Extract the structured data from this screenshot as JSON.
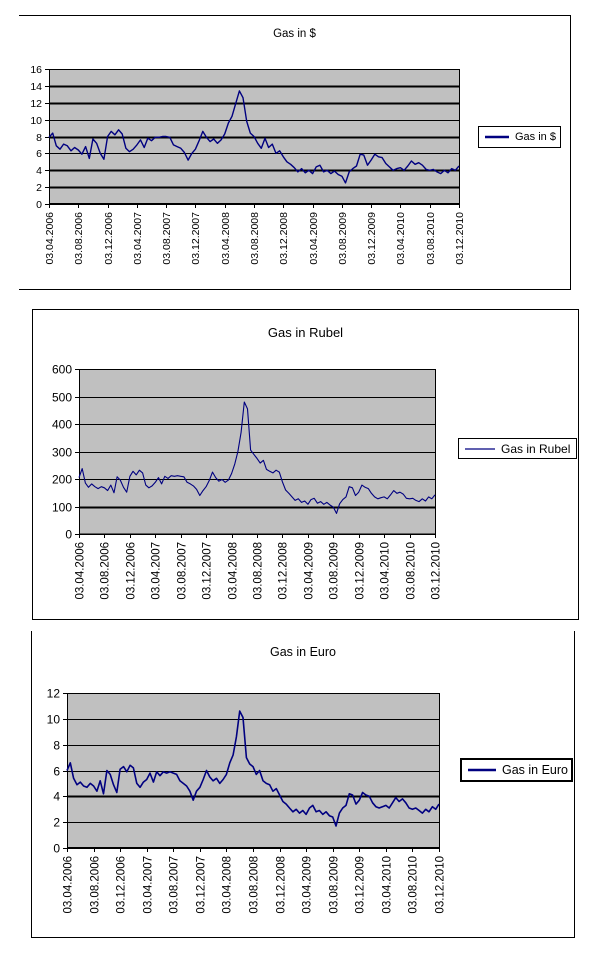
{
  "page": {
    "background": "#ffffff"
  },
  "chart_data": [
    {
      "type": "line",
      "title": "Gas in $",
      "legend_label": "Gas in $",
      "legend_position": "right",
      "grid": true,
      "line_color": "#000080",
      "plot_bg": "#c0c0c0",
      "grid_color": "#000000",
      "ylim": [
        0,
        16
      ],
      "y_ticks": [
        0,
        2,
        4,
        6,
        8,
        10,
        12,
        14,
        16
      ],
      "thick_gridlines": [
        2,
        4,
        8,
        12,
        14
      ],
      "x_labels": [
        "03.04.2006",
        "03.08.2006",
        "03.12.2006",
        "03.04.2007",
        "03.08.2007",
        "03.12.2007",
        "03.04.2008",
        "03.08.2008",
        "03.12.2008",
        "03.04.2009",
        "03.08.2009",
        "03.12.2009",
        "03.04.2010",
        "03.08.2010",
        "03.12.2010"
      ],
      "values": [
        7.9,
        8.4,
        6.9,
        6.5,
        7.1,
        6.9,
        6.3,
        6.7,
        6.4,
        5.9,
        6.8,
        5.4,
        7.7,
        7.2,
        6.0,
        5.3,
        8.0,
        8.6,
        8.2,
        8.8,
        8.3,
        6.6,
        6.2,
        6.5,
        7.0,
        7.6,
        6.7,
        7.8,
        7.5,
        7.9,
        7.9,
        8.0,
        8.0,
        7.9,
        7.0,
        6.8,
        6.6,
        6.1,
        5.2,
        6.0,
        6.5,
        7.5,
        8.6,
        7.9,
        7.4,
        7.7,
        7.2,
        7.6,
        8.3,
        9.6,
        10.4,
        11.9,
        13.4,
        12.6,
        9.8,
        8.4,
        8.0,
        7.2,
        6.6,
        7.8,
        6.7,
        7.1,
        6.0,
        6.3,
        5.6,
        5.0,
        4.7,
        4.3,
        3.8,
        4.2,
        3.7,
        4.0,
        3.6,
        4.4,
        4.6,
        3.8,
        4.0,
        3.6,
        3.9,
        3.5,
        3.3,
        2.5,
        3.8,
        4.2,
        4.5,
        5.9,
        5.8,
        4.6,
        5.2,
        5.9,
        5.6,
        5.5,
        4.8,
        4.4,
        4.0,
        4.2,
        4.3,
        4.0,
        4.5,
        5.1,
        4.7,
        4.9,
        4.6,
        4.1,
        4.0,
        4.1,
        3.8,
        3.6,
        4.0,
        3.7,
        4.2,
        4.0,
        4.5
      ]
    },
    {
      "type": "line",
      "title": "Gas in Rubel",
      "legend_label": "Gas in Rubel",
      "legend_position": "right",
      "grid": true,
      "line_color": "#000080",
      "plot_bg": "#c0c0c0",
      "grid_color": "#000000",
      "ylim": [
        0,
        600
      ],
      "y_ticks": [
        0,
        100,
        200,
        300,
        400,
        500,
        600
      ],
      "thick_gridlines": [
        100
      ],
      "x_labels": [
        "03.04.2006",
        "03.08.2006",
        "03.12.2006",
        "03.04.2007",
        "03.08.2007",
        "03.12.2007",
        "03.04.2008",
        "03.08.2008",
        "03.12.2008",
        "03.04.2009",
        "03.08.2009",
        "03.12.2009",
        "03.04.2010",
        "03.08.2010",
        "03.12.2010"
      ],
      "values": [
        205,
        238,
        185,
        170,
        182,
        172,
        165,
        172,
        168,
        158,
        178,
        150,
        208,
        196,
        170,
        152,
        210,
        228,
        215,
        232,
        222,
        178,
        168,
        175,
        188,
        205,
        182,
        210,
        202,
        212,
        210,
        212,
        210,
        208,
        188,
        182,
        175,
        162,
        140,
        158,
        172,
        195,
        225,
        205,
        192,
        198,
        188,
        196,
        220,
        255,
        300,
        370,
        480,
        455,
        305,
        290,
        275,
        258,
        268,
        235,
        228,
        222,
        232,
        225,
        190,
        160,
        148,
        135,
        122,
        128,
        115,
        120,
        108,
        125,
        130,
        112,
        118,
        108,
        115,
        105,
        98,
        75,
        110,
        125,
        135,
        172,
        168,
        140,
        152,
        178,
        170,
        165,
        148,
        135,
        128,
        132,
        135,
        128,
        142,
        158,
        148,
        152,
        145,
        130,
        128,
        130,
        122,
        118,
        128,
        120,
        135,
        128,
        142
      ]
    },
    {
      "type": "line",
      "title": "Gas in Euro",
      "legend_label": "Gas in Euro",
      "legend_position": "right",
      "grid": true,
      "line_color": "#000080",
      "plot_bg": "#c0c0c0",
      "grid_color": "#000000",
      "ylim": [
        0,
        12
      ],
      "y_ticks": [
        0,
        2,
        4,
        6,
        8,
        10,
        12
      ],
      "thick_gridlines": [
        4
      ],
      "x_labels": [
        "03.04.2006",
        "03.08.2006",
        "03.12.2006",
        "03.04.2007",
        "03.08.2007",
        "03.12.2007",
        "03.04.2008",
        "03.08.2008",
        "03.12.2008",
        "03.04.2009",
        "03.08.2009",
        "03.12.2009",
        "03.04.2010",
        "03.08.2010",
        "03.12.2010"
      ],
      "values": [
        6.0,
        6.6,
        5.4,
        4.9,
        5.1,
        4.8,
        4.7,
        5.0,
        4.8,
        4.4,
        5.2,
        4.2,
        6.0,
        5.7,
        4.9,
        4.3,
        6.1,
        6.3,
        5.9,
        6.4,
        6.2,
        5.0,
        4.7,
        5.1,
        5.3,
        5.8,
        5.1,
        5.9,
        5.6,
        5.9,
        5.8,
        5.9,
        5.8,
        5.7,
        5.2,
        5.0,
        4.8,
        4.4,
        3.7,
        4.4,
        4.7,
        5.3,
        6.0,
        5.5,
        5.2,
        5.4,
        5.0,
        5.3,
        5.7,
        6.6,
        7.2,
        8.6,
        10.6,
        10.1,
        7.0,
        6.5,
        6.3,
        5.7,
        6.0,
        5.2,
        5.0,
        4.9,
        4.4,
        4.6,
        4.1,
        3.6,
        3.4,
        3.1,
        2.8,
        3.0,
        2.7,
        2.9,
        2.6,
        3.1,
        3.3,
        2.8,
        2.9,
        2.6,
        2.8,
        2.5,
        2.4,
        1.7,
        2.7,
        3.1,
        3.3,
        4.2,
        4.1,
        3.4,
        3.7,
        4.3,
        4.1,
        4.0,
        3.5,
        3.2,
        3.1,
        3.2,
        3.3,
        3.1,
        3.5,
        3.9,
        3.6,
        3.8,
        3.5,
        3.1,
        3.0,
        3.1,
        2.9,
        2.7,
        3.0,
        2.8,
        3.2,
        3.0,
        3.4
      ]
    }
  ]
}
